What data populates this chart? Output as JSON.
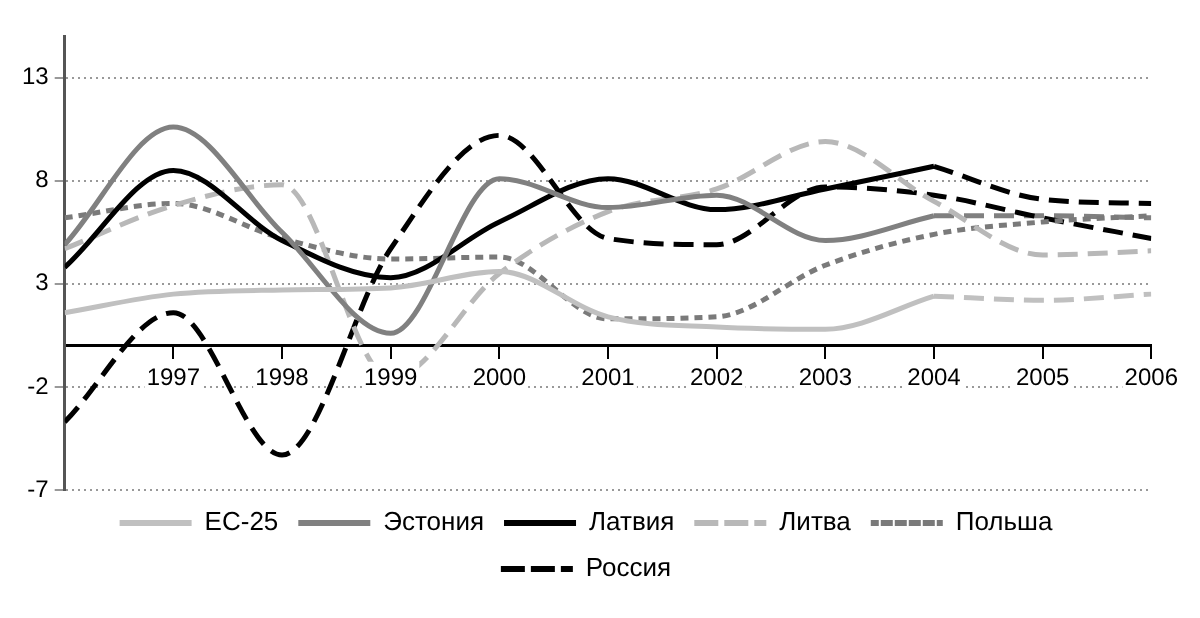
{
  "chart_data": {
    "type": "line",
    "xlim": [
      1996,
      2006
    ],
    "xticks": [
      1997,
      1998,
      1999,
      2000,
      2001,
      2002,
      2003,
      2004,
      2005,
      2006
    ],
    "ylim": [
      -7,
      15
    ],
    "yticks": [
      -7,
      -2,
      3,
      8,
      13
    ],
    "grid": "y",
    "legend": "bottom",
    "series": [
      {
        "name": "ЕС-25",
        "color": "#c0c0c0",
        "line_style": "solid",
        "x": [
          1996,
          1997,
          1998,
          1999,
          2000,
          2001,
          2002,
          2003,
          2004
        ],
        "values": [
          1.6,
          2.5,
          2.7,
          2.8,
          3.6,
          1.4,
          0.9,
          0.8,
          2.4
        ]
      },
      {
        "name": "Эстония",
        "color": "#808080",
        "line_style": "solid",
        "x": [
          1996,
          1997,
          1998,
          1999,
          2000,
          2001,
          2002,
          2003,
          2004
        ],
        "values": [
          4.9,
          10.6,
          5.5,
          0.6,
          8.1,
          6.7,
          7.3,
          5.1,
          6.3
        ]
      },
      {
        "name": "Латвия",
        "color": "#000000",
        "line_style": "solid",
        "x": [
          1996,
          1997,
          1998,
          1999,
          2000,
          2001,
          2002,
          2003,
          2004
        ],
        "values": [
          3.8,
          8.5,
          5.1,
          3.3,
          6.0,
          8.1,
          6.6,
          7.6,
          8.7
        ]
      },
      {
        "name": "Литва",
        "color": "#b8b8b8",
        "line_style": "dashed",
        "x": [
          1996,
          1997,
          1998,
          1999,
          2000,
          2001,
          2002,
          2003,
          2004,
          2005,
          2006
        ],
        "values": [
          4.7,
          6.8,
          7.8,
          -1.6,
          3.5,
          6.5,
          7.6,
          9.9,
          7.0,
          4.4,
          4.6
        ]
      },
      {
        "name": "Польша",
        "color": "#7a7a7a",
        "line_style": "dotted",
        "x": [
          1996,
          1997,
          1998,
          1999,
          2000,
          2001,
          2002,
          2003,
          2004,
          2005,
          2006
        ],
        "values": [
          6.2,
          6.9,
          5.2,
          4.2,
          4.3,
          1.3,
          1.4,
          3.9,
          5.4,
          6.0,
          6.3
        ]
      },
      {
        "name": "Россия",
        "color": "#000000",
        "line_style": "dashed",
        "x": [
          1996,
          1997,
          1998,
          1999,
          2000,
          2001,
          2002,
          2003,
          2004,
          2005,
          2006
        ],
        "values": [
          -3.7,
          1.6,
          -5.3,
          4.7,
          10.2,
          5.2,
          4.9,
          7.7,
          7.3,
          6.2,
          5.2
        ]
      },
      {
        "color": "#c0c0c0",
        "line_style": "dashed",
        "x": [
          2004,
          2005,
          2006
        ],
        "values": [
          2.4,
          2.2,
          2.5
        ]
      },
      {
        "color": "#808080",
        "line_style": "dashed",
        "x": [
          2004,
          2005,
          2006
        ],
        "values": [
          6.3,
          6.3,
          6.2
        ]
      },
      {
        "color": "#000000",
        "line_style": "dashed",
        "x": [
          2004,
          2005,
          2006
        ],
        "values": [
          8.7,
          7.1,
          6.9
        ]
      }
    ]
  }
}
